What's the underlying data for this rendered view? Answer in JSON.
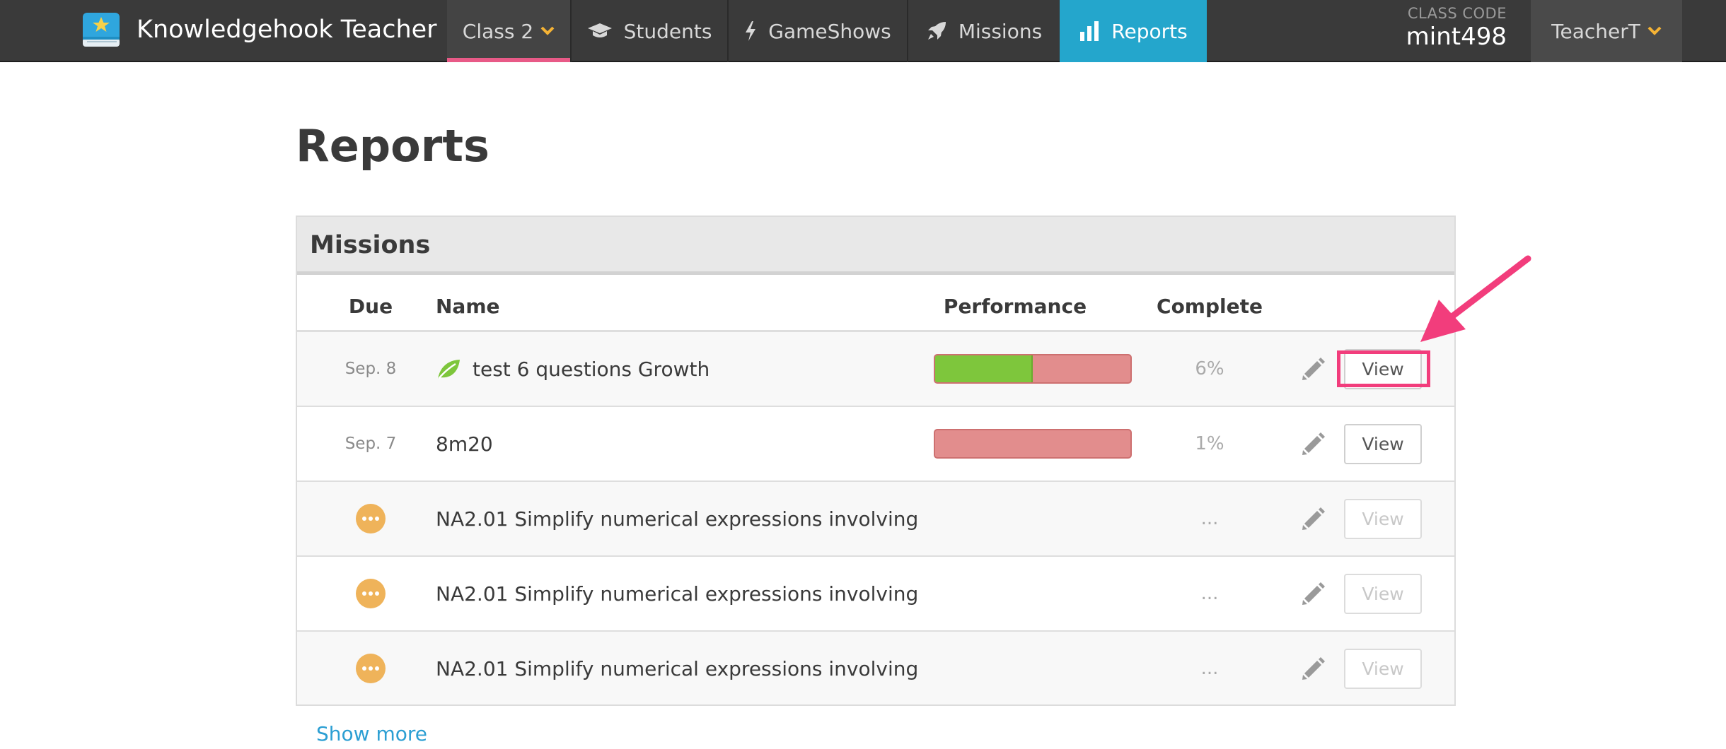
{
  "brand": {
    "title": "Knowledgehook Teacher",
    "logo_icon": "book-star-icon"
  },
  "nav": {
    "class_selector": {
      "label": "Class 2",
      "icon": "chevron-down-icon",
      "accent": "#e85a87"
    },
    "students": {
      "label": "Students",
      "icon": "graduation-cap-icon"
    },
    "gameshows": {
      "label": "GameShows",
      "icon": "lightning-icon"
    },
    "missions": {
      "label": "Missions",
      "icon": "rocket-icon"
    },
    "reports": {
      "label": "Reports",
      "icon": "bar-chart-icon",
      "active": true,
      "active_color": "#24a6cc"
    },
    "class_code": {
      "label": "CLASS CODE",
      "value": "mint498"
    },
    "teacher_menu": {
      "label": "TeacherT",
      "icon": "chevron-down-icon"
    }
  },
  "page": {
    "title": "Reports"
  },
  "missions_panel": {
    "title": "Missions",
    "columns": {
      "due": "Due",
      "name": "Name",
      "performance": "Performance",
      "complete": "Complete"
    },
    "rows": [
      {
        "due": "Sep. 8",
        "name": "test 6 questions Growth",
        "type_icon": "leaf-icon",
        "performance_correct": 0.5,
        "complete": "6%",
        "view_label": "View",
        "view_enabled": true
      },
      {
        "due": "Sep. 7",
        "name": "8m20",
        "type_icon": "",
        "performance_correct": 0.0,
        "complete": "1%",
        "view_label": "View",
        "view_enabled": true
      },
      {
        "due": "",
        "due_icon": "pending-dots-icon",
        "name": "NA2.01 Simplify numerical expressions involving",
        "complete": "...",
        "view_label": "View",
        "view_enabled": false
      },
      {
        "due": "",
        "due_icon": "pending-dots-icon",
        "name": "NA2.01 Simplify numerical expressions involving",
        "complete": "...",
        "view_label": "View",
        "view_enabled": false
      },
      {
        "due": "",
        "due_icon": "pending-dots-icon",
        "name": "NA2.01 Simplify numerical expressions involving",
        "complete": "...",
        "view_label": "View",
        "view_enabled": false
      }
    ],
    "show_more": "Show more"
  },
  "colors": {
    "correct": "#7ec63c",
    "incorrect": "#e28d8d",
    "pending": "#efb35a",
    "link": "#2c9fd3",
    "annotation": "#f23d7c"
  }
}
